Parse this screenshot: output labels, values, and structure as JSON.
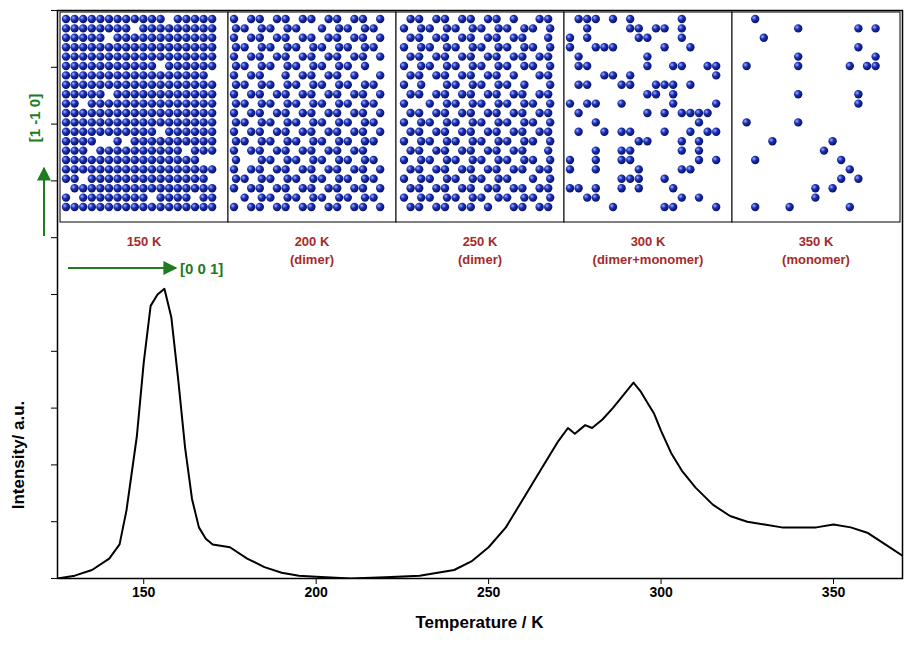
{
  "chart_data": {
    "type": "line",
    "x_label": "Temperature / K",
    "y_label": "Intensity/ a.u.",
    "xlim": [
      125,
      370
    ],
    "xticks": [
      150,
      200,
      250,
      300,
      350
    ],
    "ylim": [
      0,
      10
    ],
    "yticks": [
      0,
      1,
      2,
      3,
      4,
      5,
      6,
      7,
      8,
      9,
      10
    ],
    "tick_labels": "x",
    "color": "#000000",
    "x": [
      125,
      130,
      135,
      140,
      143,
      145,
      148,
      150,
      152,
      154,
      156,
      158,
      160,
      162,
      164,
      166,
      168,
      170,
      175,
      180,
      185,
      190,
      195,
      200,
      210,
      220,
      230,
      240,
      245,
      250,
      255,
      260,
      265,
      268,
      270,
      273,
      275,
      278,
      280,
      283,
      286,
      290,
      292,
      294,
      296,
      298,
      300,
      303,
      306,
      310,
      315,
      320,
      325,
      330,
      335,
      340,
      345,
      350,
      355,
      360,
      365,
      370
    ],
    "values": [
      0.0,
      0.05,
      0.15,
      0.35,
      0.6,
      1.2,
      2.5,
      3.8,
      4.8,
      5.0,
      5.1,
      4.6,
      3.5,
      2.3,
      1.4,
      0.9,
      0.7,
      0.6,
      0.55,
      0.35,
      0.2,
      0.1,
      0.05,
      0.03,
      0.0,
      0.02,
      0.05,
      0.15,
      0.3,
      0.55,
      0.9,
      1.4,
      1.9,
      2.2,
      2.4,
      2.65,
      2.55,
      2.7,
      2.65,
      2.8,
      3.0,
      3.3,
      3.45,
      3.3,
      3.1,
      2.9,
      2.6,
      2.2,
      1.9,
      1.6,
      1.3,
      1.1,
      1.0,
      0.95,
      0.9,
      0.9,
      0.9,
      0.95,
      0.9,
      0.8,
      0.6,
      0.4
    ],
    "insets": {
      "color": "#1a2fb8",
      "label_color": "#a52a2a",
      "panels": [
        {
          "label": "150 K"
        },
        {
          "label": "200 K",
          "caption": "(dimer)"
        },
        {
          "label": "250 K",
          "caption": "(dimer)"
        },
        {
          "label": "300 K",
          "caption": "(dimer+monomer)"
        },
        {
          "label": "350 K",
          "caption": "(monomer)"
        }
      ]
    },
    "directions": {
      "color": "#1e7b1e",
      "horizontal": "[0 0 1]",
      "vertical": "[1 -1 0]"
    }
  }
}
